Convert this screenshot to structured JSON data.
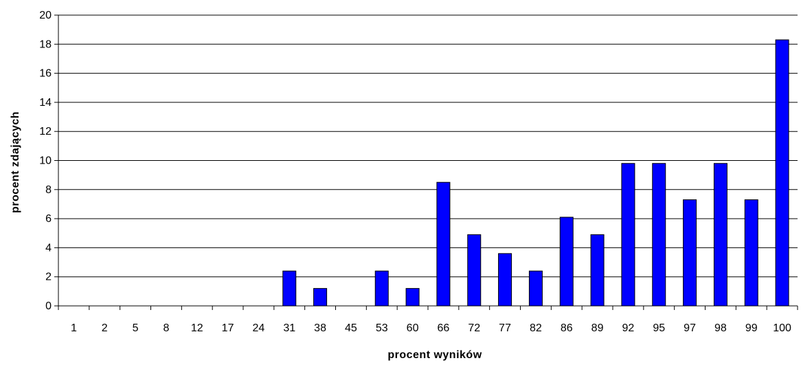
{
  "chart_data": {
    "type": "bar",
    "categories": [
      "1",
      "2",
      "5",
      "8",
      "12",
      "17",
      "24",
      "31",
      "38",
      "45",
      "53",
      "60",
      "66",
      "72",
      "77",
      "82",
      "86",
      "89",
      "92",
      "95",
      "97",
      "98",
      "99",
      "100"
    ],
    "values": [
      0,
      0,
      0,
      0,
      0,
      0,
      0,
      2.4,
      1.2,
      0,
      2.4,
      1.2,
      8.5,
      4.9,
      3.6,
      2.4,
      6.1,
      4.9,
      9.8,
      9.8,
      7.3,
      9.8,
      7.3,
      18.3
    ],
    "title": "",
    "xlabel": "procent wyników",
    "ylabel": "procent zdających",
    "ylim": [
      0,
      20
    ],
    "yticks": [
      "0",
      "2",
      "4",
      "6",
      "8",
      "10",
      "12",
      "14",
      "16",
      "18",
      "20"
    ],
    "grid": true,
    "bar_color": "#0000ff",
    "bar_edge_color": "#000000"
  }
}
